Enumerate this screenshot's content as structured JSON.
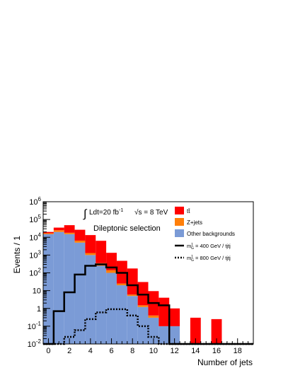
{
  "chart_data": {
    "type": "bar",
    "title": "",
    "xlabel": "Number of jets",
    "ylabel": "Events / 1",
    "xlim": [
      -0.5,
      19.5
    ],
    "ylim": [
      0.01,
      1000000
    ],
    "yscale": "log",
    "bin_edges": [
      -0.5,
      0.5,
      1.5,
      2.5,
      3.5,
      4.5,
      5.5,
      6.5,
      7.5,
      8.5,
      9.5,
      10.5,
      11.5,
      12.5,
      13.5,
      14.5,
      15.5,
      16.5,
      17.5,
      18.5,
      19.5
    ],
    "x_ticks": [
      "0",
      "2",
      "4",
      "6",
      "8",
      "10",
      "12",
      "14",
      "16",
      "18"
    ],
    "x_tick_values": [
      0,
      2,
      4,
      6,
      8,
      10,
      12,
      14,
      16,
      18
    ],
    "y_ticks": [
      {
        "value": 0.01,
        "base": "10",
        "exp": "-2"
      },
      {
        "value": 0.1,
        "base": "10",
        "exp": "-1"
      },
      {
        "value": 1,
        "base": "1",
        "exp": ""
      },
      {
        "value": 10,
        "base": "10",
        "exp": ""
      },
      {
        "value": 100,
        "base": "10",
        "exp": "2"
      },
      {
        "value": 1000,
        "base": "10",
        "exp": "3"
      },
      {
        "value": 10000,
        "base": "10",
        "exp": "4"
      },
      {
        "value": 100000,
        "base": "10",
        "exp": "5"
      },
      {
        "value": 1000000,
        "base": "10",
        "exp": "6"
      }
    ],
    "annotations": {
      "lumi_prefix": "Ldt=20 fb",
      "lumi_exp": "-1",
      "energy": "√s = 8 TeV",
      "selection": "Dileptonic selection"
    },
    "stacked_series": [
      {
        "name": "Other backgrounds",
        "color": "#7b9bd6",
        "values": [
          15000,
          20000,
          15000,
          5000,
          1000,
          250,
          100,
          20,
          5,
          1.2,
          0.3,
          0.1,
          0.1,
          0,
          0,
          0,
          0,
          0,
          0,
          0
        ]
      },
      {
        "name": "Z+jets",
        "color": "#ff7f0a",
        "values": [
          2000,
          5000,
          3000,
          1500,
          300,
          100,
          40,
          5,
          1,
          0.3,
          0.1,
          0,
          0,
          0,
          0,
          0,
          0,
          0,
          0,
          0
        ]
      },
      {
        "name": "tt̄",
        "color": "#ff0000",
        "values": [
          3000,
          10000,
          30000,
          20000,
          12000,
          6000,
          1200,
          450,
          170,
          29,
          9,
          3.9,
          0.9,
          0,
          0.3,
          0,
          0.25,
          0,
          0,
          0
        ]
      }
    ],
    "stack_totals": [
      20000,
      35000,
      48000,
      26500,
      13300,
      6350,
      1340,
      475,
      176,
      30.5,
      9.4,
      4,
      1,
      0,
      0.3,
      0,
      0.25,
      0,
      0,
      0
    ],
    "overlay_series": [
      {
        "name": "m",
        "sub": "G",
        "sup": "1",
        "suffix": " = 400 GeV / tjtj",
        "style": "solid",
        "values": [
          0,
          0.7,
          8,
          80,
          250,
          300,
          200,
          100,
          20,
          6,
          2,
          1.5,
          0,
          0,
          0,
          0,
          0,
          0,
          0,
          0
        ]
      },
      {
        "name": "m",
        "sub": "G",
        "sup": "1",
        "suffix": " = 800 GeV / tjtj",
        "style": "dotted",
        "values": [
          0,
          0,
          0.025,
          0.06,
          0.25,
          0.6,
          0.9,
          0.9,
          0.4,
          0.1,
          0.025,
          0,
          0,
          0,
          0,
          0,
          0,
          0,
          0,
          0
        ]
      }
    ],
    "legend": {
      "placement": "top-right",
      "entries": [
        {
          "label": "tt̄",
          "kind": "fill",
          "color": "#ff0000"
        },
        {
          "label": "Z+jets",
          "kind": "fill",
          "color": "#ff7f0a"
        },
        {
          "label": "Other backgrounds",
          "kind": "fill",
          "color": "#7b9bd6"
        },
        {
          "label": " = 400 GeV / tjtj",
          "kind": "solid",
          "color": "#000000"
        },
        {
          "label": " = 800 GeV / tjtj",
          "kind": "dotted",
          "color": "#000000"
        }
      ]
    },
    "grid": false
  }
}
